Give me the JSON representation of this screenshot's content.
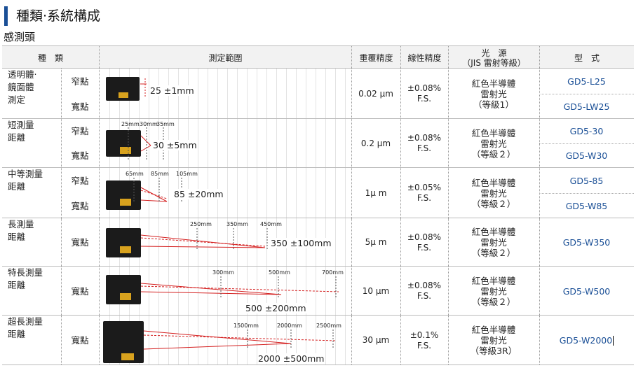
{
  "title": "種類‧系統構成",
  "subtitle": "感測頭",
  "colors": {
    "accent": "#1a4f96",
    "laser": "#d42020",
    "lens": "#d8a21e"
  },
  "headers": {
    "type": "種　類",
    "range": "測定範圍",
    "repeat": "重覆精度",
    "linear": "線性精度",
    "source1": "光　源",
    "source2": "（JIS 雷射等級）",
    "model": "型　式"
  },
  "rows": [
    {
      "group": [
        "透明體‧",
        "鏡面體",
        "測定"
      ],
      "spots": [
        "窄點",
        "寬點"
      ],
      "range": "25 ±1mm",
      "ticks": [],
      "repeat": "0.02 μm",
      "linear": "±0.08%",
      "fs": "F.S.",
      "source": [
        "紅色半導體",
        "雷射光",
        "（等級1）"
      ],
      "models": [
        "GD5-L25",
        "GD5-LW25"
      ]
    },
    {
      "group": [
        "短測量",
        "距離"
      ],
      "spots": [
        "窄點",
        "寬點"
      ],
      "range": "30 ±5mm",
      "ticks": [
        "25mm",
        "30mm",
        "35mm"
      ],
      "repeat": "0.2 μm",
      "linear": "±0.08%",
      "fs": "F.S.",
      "source": [
        "紅色半導體",
        "雷射光",
        "（等級２）"
      ],
      "models": [
        "GD5-30",
        "GD5-W30"
      ]
    },
    {
      "group": [
        "中等測量",
        "距離"
      ],
      "spots": [
        "窄點",
        "寬點"
      ],
      "range": "85 ±20mm",
      "ticks": [
        "65mm",
        "85mm",
        "105mm"
      ],
      "repeat": "1μ m",
      "linear": "±0.05%",
      "fs": "F.S.",
      "source": [
        "紅色半導體",
        "雷射光",
        "（等級２）"
      ],
      "models": [
        "GD5-85",
        "GD5-W85"
      ]
    },
    {
      "group": [
        "長測量",
        "距離"
      ],
      "spots": [
        "寬點"
      ],
      "range": "350 ±100mm",
      "ticks": [
        "250mm",
        "350mm",
        "450mm"
      ],
      "repeat": "5μ m",
      "linear": "±0.08%",
      "fs": "F.S.",
      "source": [
        "紅色半導體",
        "雷射光",
        "（等級２）"
      ],
      "models": [
        "GD5-W350"
      ]
    },
    {
      "group": [
        "特長測量",
        "距離"
      ],
      "spots": [
        "寬點"
      ],
      "range": "500 ±200mm",
      "ticks": [
        "300mm",
        "500mm",
        "700mm"
      ],
      "repeat": "10 μm",
      "linear": "±0.08%",
      "fs": "F.S.",
      "source": [
        "紅色半導體",
        "雷射光",
        "（等級２）"
      ],
      "models": [
        "GD5-W500"
      ]
    },
    {
      "group": [
        "超長測量",
        "距離"
      ],
      "spots": [
        "寬點"
      ],
      "range": "2000 ±500mm",
      "ticks": [
        "1500mm",
        "2000mm",
        "2500mm"
      ],
      "repeat": "30 μm",
      "linear": "±0.1%",
      "fs": "F.S.",
      "source": [
        "紅色半導體",
        "雷射光",
        "（等級3R）"
      ],
      "models": [
        "GD5-W2000"
      ]
    }
  ]
}
